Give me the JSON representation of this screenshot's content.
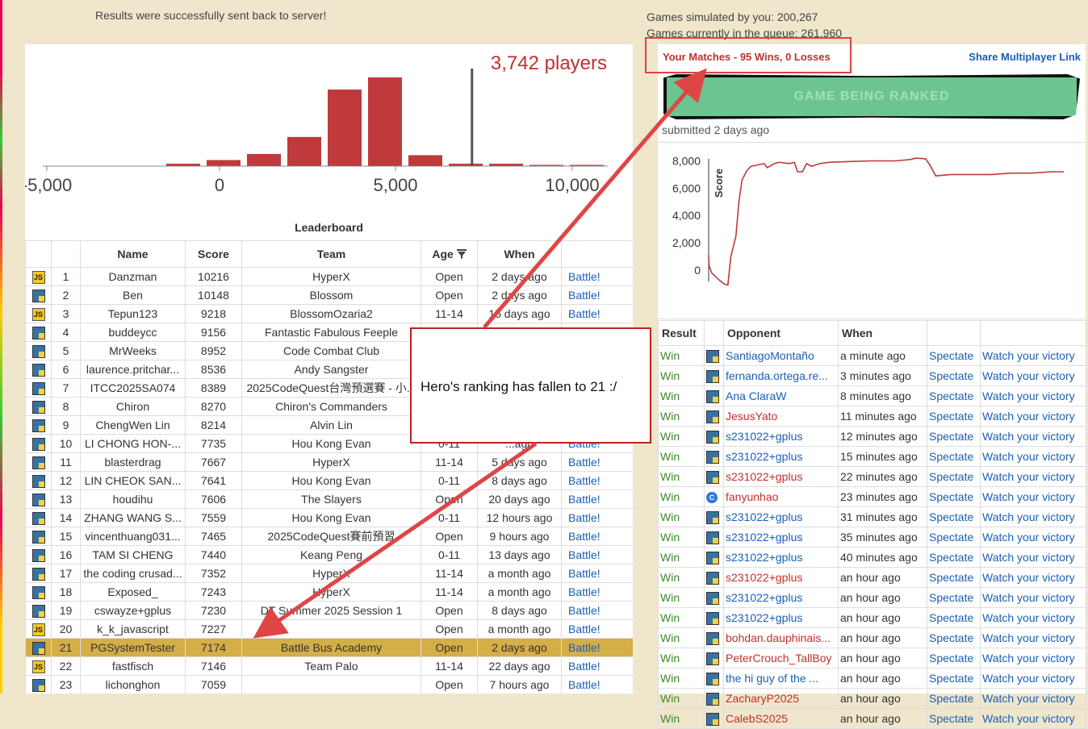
{
  "status": {
    "message": "Results were successfully sent back to server!",
    "games_simulated": "Games simulated by you: 200,267",
    "games_in_queue": "Games currently in the queue: 261,960"
  },
  "histogram": {
    "players_label": "3,742 players",
    "ticks": [
      "-5,000",
      "0",
      "5,000",
      "10,000"
    ],
    "bars": [
      0,
      0,
      0,
      0.02,
      0.05,
      0.1,
      0.24,
      0.63,
      0.73,
      0.09,
      0.02,
      0.02,
      0.01,
      0.01
    ],
    "marker_value": 7174
  },
  "leaderboard": {
    "title": "Leaderboard",
    "headers": [
      "",
      "",
      "Name",
      "Score",
      "Team",
      "Age",
      "When",
      ""
    ],
    "filter_icon": "filter-icon",
    "battle_label": "Battle!",
    "rows": [
      {
        "lang": "js",
        "rank": "1",
        "name": "Danzman",
        "score": "10216",
        "team": "HyperX",
        "age": "Open",
        "when": "2 days ago"
      },
      {
        "lang": "py",
        "rank": "2",
        "name": "Ben",
        "score": "10148",
        "team": "Blossom",
        "age": "Open",
        "when": "2 days ago"
      },
      {
        "lang": "js",
        "rank": "3",
        "name": "Tepun123",
        "score": "9218",
        "team": "BlossomOzaria2",
        "age": "11-14",
        "when": "15 days ago"
      },
      {
        "lang": "py",
        "rank": "4",
        "name": "buddeycc",
        "score": "9156",
        "team": "Fantastic Fabulous Feeple",
        "age": "",
        "when": ""
      },
      {
        "lang": "py",
        "rank": "5",
        "name": "MrWeeks",
        "score": "8952",
        "team": "Code Combat Club",
        "age": "",
        "when": ""
      },
      {
        "lang": "py",
        "rank": "6",
        "name": "laurence.pritchar...",
        "score": "8536",
        "team": "Andy Sangster",
        "age": "",
        "when": ""
      },
      {
        "lang": "py",
        "rank": "7",
        "name": "ITCC2025SA074",
        "score": "8389",
        "team": "2025CodeQuest台灣預選賽 - 小...",
        "age": "",
        "when": ""
      },
      {
        "lang": "py",
        "rank": "8",
        "name": "Chiron",
        "score": "8270",
        "team": "Chiron's Commanders",
        "age": "",
        "when": ""
      },
      {
        "lang": "py",
        "rank": "9",
        "name": "ChengWen Lin",
        "score": "8214",
        "team": "Alvin Lin",
        "age": "",
        "when": ""
      },
      {
        "lang": "py",
        "rank": "10",
        "name": "LI CHONG HON-...",
        "score": "7735",
        "team": "Hou Kong Evan",
        "age": "0-11",
        "when": "...ago"
      },
      {
        "lang": "py",
        "rank": "11",
        "name": "blasterdrag",
        "score": "7667",
        "team": "HyperX",
        "age": "11-14",
        "when": "5 days ago"
      },
      {
        "lang": "py",
        "rank": "12",
        "name": "LIN CHEOK SAN...",
        "score": "7641",
        "team": "Hou Kong Evan",
        "age": "0-11",
        "when": "8 days ago"
      },
      {
        "lang": "py",
        "rank": "13",
        "name": "houdihu",
        "score": "7606",
        "team": "The Slayers",
        "age": "Open",
        "when": "20 days ago"
      },
      {
        "lang": "py",
        "rank": "14",
        "name": "ZHANG WANG S...",
        "score": "7559",
        "team": "Hou Kong Evan",
        "age": "0-11",
        "when": "12 hours ago"
      },
      {
        "lang": "py",
        "rank": "15",
        "name": "vincenthuang031...",
        "score": "7465",
        "team": "2025CodeQuest賽前預習",
        "age": "Open",
        "when": "9 hours ago"
      },
      {
        "lang": "py",
        "rank": "16",
        "name": "TAM SI CHENG",
        "score": "7440",
        "team": "Keang Peng",
        "age": "0-11",
        "when": "13 days ago"
      },
      {
        "lang": "py",
        "rank": "17",
        "name": "the coding crusad...",
        "score": "7352",
        "team": "HyperX",
        "age": "11-14",
        "when": "a month ago"
      },
      {
        "lang": "py",
        "rank": "18",
        "name": "Exposed_",
        "score": "7243",
        "team": "HyperX",
        "age": "11-14",
        "when": "a month ago"
      },
      {
        "lang": "py",
        "rank": "19",
        "name": "cswayze+gplus",
        "score": "7230",
        "team": "DT Summer 2025 Session 1",
        "age": "Open",
        "when": "8 days ago"
      },
      {
        "lang": "js",
        "rank": "20",
        "name": "k_k_javascript",
        "score": "7227",
        "team": "",
        "age": "Open",
        "when": "a month ago"
      },
      {
        "lang": "py",
        "rank": "21",
        "name": "PGSystemTester",
        "score": "7174",
        "team": "Battle Bus Academy",
        "age": "Open",
        "when": "2 days ago",
        "me": true
      },
      {
        "lang": "js",
        "rank": "22",
        "name": "fastfisch",
        "score": "7146",
        "team": "Team Palo",
        "age": "11-14",
        "when": "22 days ago"
      },
      {
        "lang": "py",
        "rank": "23",
        "name": "lichonghon",
        "score": "7059",
        "team": "",
        "age": "Open",
        "when": "7 hours ago"
      }
    ]
  },
  "matches": {
    "title": "Your Matches - 95 Wins, 0 Losses",
    "share_link": "Share Multiplayer Link",
    "banner": "GAME BEING RANKED",
    "submitted": "submitted 2 days ago",
    "graph": {
      "ylabel": "Score",
      "yticks": [
        "8,000",
        "6,000",
        "4,000",
        "2,000",
        "0"
      ],
      "points": [
        [
          0,
          1100
        ],
        [
          0.5,
          300
        ],
        [
          3,
          -200
        ],
        [
          10,
          -700
        ],
        [
          15,
          -1000
        ],
        [
          19,
          -1100
        ],
        [
          22,
          1000
        ],
        [
          27,
          2500
        ],
        [
          30,
          5000
        ],
        [
          33,
          6600
        ],
        [
          38,
          7300
        ],
        [
          42,
          7600
        ],
        [
          48,
          7700
        ],
        [
          55,
          7800
        ],
        [
          58,
          7500
        ],
        [
          65,
          7800
        ],
        [
          70,
          7900
        ],
        [
          80,
          7800
        ],
        [
          85,
          7900
        ],
        [
          88,
          7200
        ],
        [
          93,
          7200
        ],
        [
          97,
          7800
        ],
        [
          102,
          7600
        ],
        [
          110,
          7800
        ],
        [
          120,
          7900
        ],
        [
          140,
          7950
        ],
        [
          160,
          8000
        ],
        [
          175,
          8000
        ],
        [
          185,
          8000
        ],
        [
          200,
          8100
        ],
        [
          205,
          8200
        ],
        [
          215,
          8150
        ],
        [
          220,
          7600
        ],
        [
          225,
          6900
        ],
        [
          240,
          7000
        ],
        [
          260,
          7000
        ],
        [
          280,
          7000
        ],
        [
          300,
          7100
        ],
        [
          320,
          7100
        ],
        [
          340,
          7200
        ],
        [
          352,
          7200
        ]
      ],
      "xmax": 352,
      "ymin": -1300,
      "ymax": 8500
    },
    "headers": [
      "Result",
      "",
      "Opponent",
      "When",
      "",
      ""
    ],
    "spectate_label": "Spectate",
    "watch_label": "Watch your victory",
    "rows": [
      {
        "result": "Win",
        "lang": "py",
        "opponent": "SantiagoMontaño",
        "when": "a minute ago",
        "red": false
      },
      {
        "result": "Win",
        "lang": "py",
        "opponent": "fernanda.ortega.re...",
        "when": "3 minutes ago",
        "red": false
      },
      {
        "result": "Win",
        "lang": "py",
        "opponent": "Ana ClaraW",
        "when": "8 minutes ago",
        "red": false
      },
      {
        "result": "Win",
        "lang": "py",
        "opponent": "JesusYato",
        "when": "11 minutes ago",
        "red": true
      },
      {
        "result": "Win",
        "lang": "py",
        "opponent": "s231022+gplus",
        "when": "12 minutes ago",
        "red": false
      },
      {
        "result": "Win",
        "lang": "py",
        "opponent": "s231022+gplus",
        "when": "15 minutes ago",
        "red": false
      },
      {
        "result": "Win",
        "lang": "py",
        "opponent": "s231022+gplus",
        "when": "22 minutes ago",
        "red": true
      },
      {
        "result": "Win",
        "lang": "cpp",
        "opponent": "fanyunhao",
        "when": "23 minutes ago",
        "red": true
      },
      {
        "result": "Win",
        "lang": "py",
        "opponent": "s231022+gplus",
        "when": "31 minutes ago",
        "red": false
      },
      {
        "result": "Win",
        "lang": "py",
        "opponent": "s231022+gplus",
        "when": "35 minutes ago",
        "red": false
      },
      {
        "result": "Win",
        "lang": "py",
        "opponent": "s231022+gplus",
        "when": "40 minutes ago",
        "red": false
      },
      {
        "result": "Win",
        "lang": "py",
        "opponent": "s231022+gplus",
        "when": "an hour ago",
        "red": true
      },
      {
        "result": "Win",
        "lang": "py",
        "opponent": "s231022+gplus",
        "when": "an hour ago",
        "red": false
      },
      {
        "result": "Win",
        "lang": "py",
        "opponent": "s231022+gplus",
        "when": "an hour ago",
        "red": false
      },
      {
        "result": "Win",
        "lang": "py",
        "opponent": "bohdan.dauphinais...",
        "when": "an hour ago",
        "red": true
      },
      {
        "result": "Win",
        "lang": "py",
        "opponent": "PeterCrouch_TallBoy",
        "when": "an hour ago",
        "red": true
      },
      {
        "result": "Win",
        "lang": "py",
        "opponent": "the hi guy of the ...",
        "when": "an hour ago",
        "red": false
      },
      {
        "result": "Win",
        "lang": "py",
        "opponent": "ZacharyP2025",
        "when": "an hour ago",
        "red": true
      },
      {
        "result": "Win",
        "lang": "py",
        "opponent": "CalebS2025",
        "when": "an hour ago",
        "red": true
      }
    ]
  },
  "annotation": {
    "callout_text": "Hero's ranking has fallen to 21 :/",
    "color": "#e04545"
  }
}
